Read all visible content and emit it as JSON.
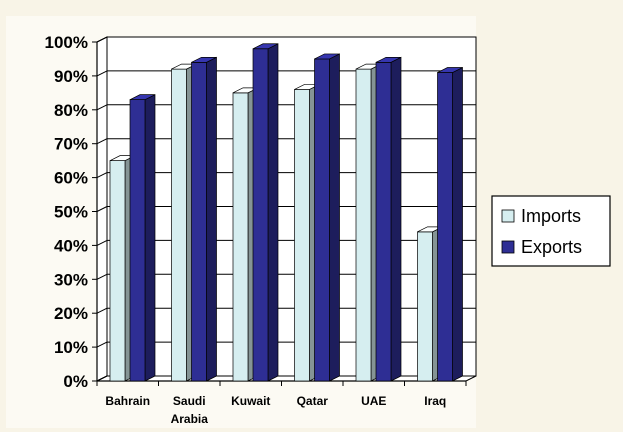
{
  "chart_data": {
    "type": "bar",
    "categories": [
      "Bahrain",
      "Saudi Arabia",
      "Kuwait",
      "Qatar",
      "UAE",
      "Iraq"
    ],
    "series": [
      {
        "name": "Imports",
        "values": [
          65,
          92,
          85,
          86,
          92,
          44
        ],
        "color": "#d6eef0"
      },
      {
        "name": "Exports",
        "values": [
          83,
          94,
          98,
          95,
          94,
          91
        ],
        "color": "#2e2e94"
      }
    ],
    "ylim": [
      0,
      100
    ],
    "yticks": [
      "0%",
      "10%",
      "20%",
      "30%",
      "40%",
      "50%",
      "60%",
      "70%",
      "80%",
      "90%",
      "100%"
    ],
    "grid": true,
    "legend": "right",
    "three_d": true
  }
}
